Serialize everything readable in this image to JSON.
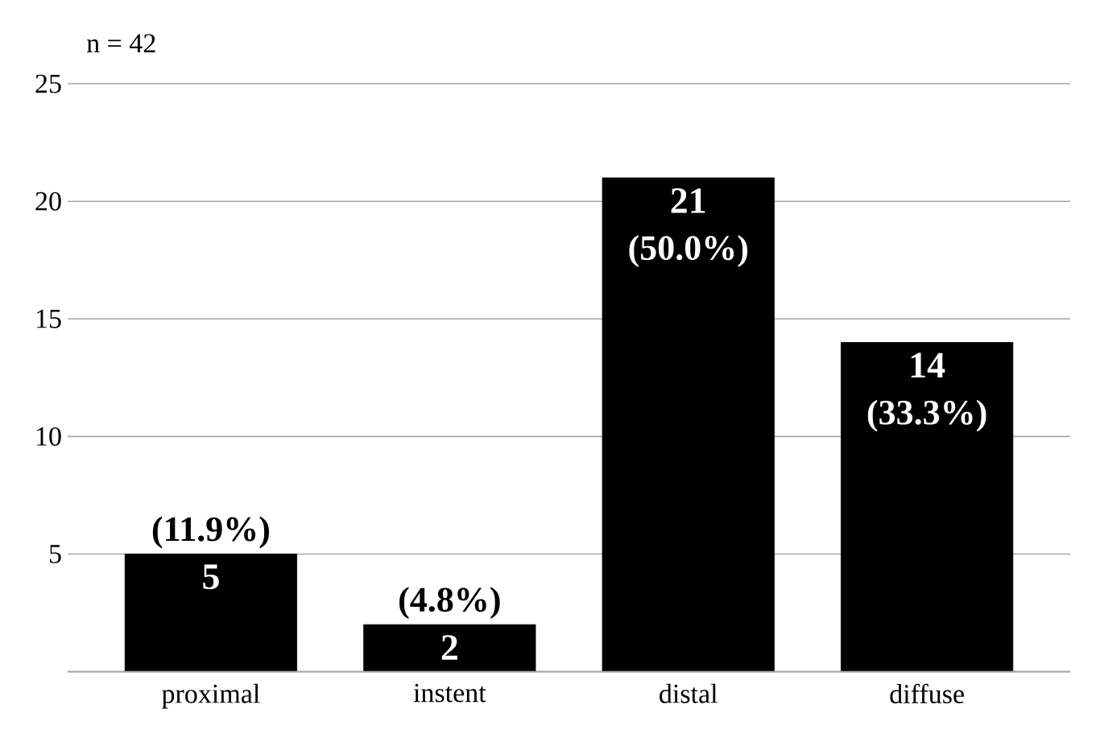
{
  "chart_data": {
    "type": "bar",
    "title": "n = 42",
    "categories": [
      "proximal",
      "instent",
      "distal",
      "diffuse"
    ],
    "values": [
      5,
      2,
      21,
      14
    ],
    "color": "#000000",
    "data_labels": true,
    "annotations": [
      {
        "text": "(11.9%)",
        "x": "proximal",
        "y": 5
      },
      {
        "text": "(4.8%)",
        "x": "instent",
        "y": 2
      },
      {
        "text": "(50.0%)",
        "x": "distal",
        "y": 21
      },
      {
        "text": "(33.3%)",
        "x": "diffuse",
        "y": 14
      }
    ],
    "ylim": [
      0,
      25
    ],
    "yticks": [
      {
        "value": 0,
        "label": null
      },
      5,
      10,
      15,
      20,
      25
    ],
    "grid": "y"
  }
}
